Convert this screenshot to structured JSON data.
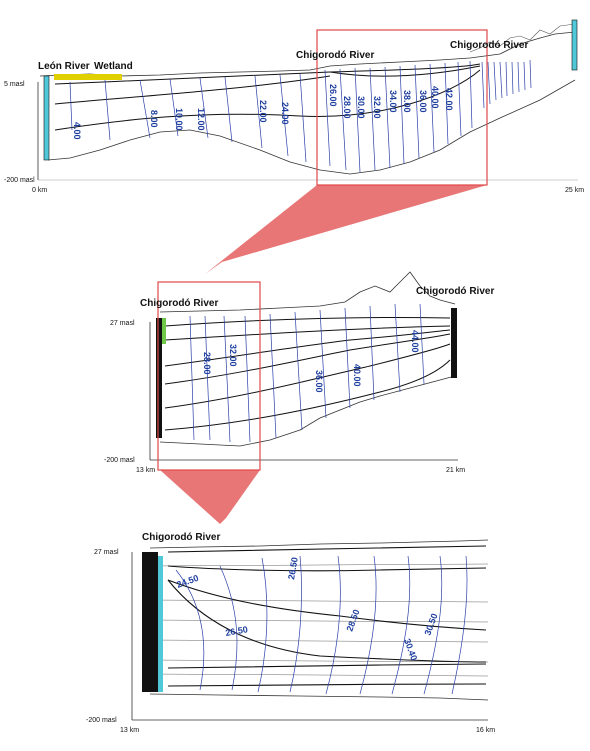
{
  "panel1": {
    "labels": {
      "leon_river": "León River",
      "wetland": "Wetland",
      "chigorodo_mid": "Chigorodó River",
      "chigorodo_right": "Chigorodó River"
    },
    "y_top": "5 masl",
    "y_bottom": "-200 masl",
    "x_left": "0 km",
    "x_right": "25 km",
    "contours": [
      "4.00",
      "8.00",
      "10.00",
      "12.00",
      "24.00",
      "22.00",
      "26.00",
      "28.00",
      "30.00",
      "32.00",
      "34.00",
      "36.00",
      "38.00",
      "40.00",
      "42.00"
    ]
  },
  "panel2": {
    "labels": {
      "chigorodo_left": "Chigorodó River",
      "chigorodo_right": "Chigorodó River"
    },
    "y_top": "27 masl",
    "y_bottom": "-200 masl",
    "x_left": "13 km",
    "x_right": "21 km",
    "contours": [
      "28.00",
      "32.00",
      "36.00",
      "40.00",
      "44.00"
    ]
  },
  "panel3": {
    "labels": {
      "chigorodo": "Chigorodó River"
    },
    "y_top": "27 masl",
    "y_bottom": "-200 masl",
    "x_left": "13 km",
    "x_right": "16 km",
    "contours": [
      "24.50",
      "26.50",
      "26.50",
      "28.50",
      "30.40",
      "30.50"
    ]
  },
  "colors": {
    "boundary": "#50c8d8",
    "wetland": "#e0d000",
    "contour": "#2a3fa8",
    "zoom": "#e04848"
  }
}
